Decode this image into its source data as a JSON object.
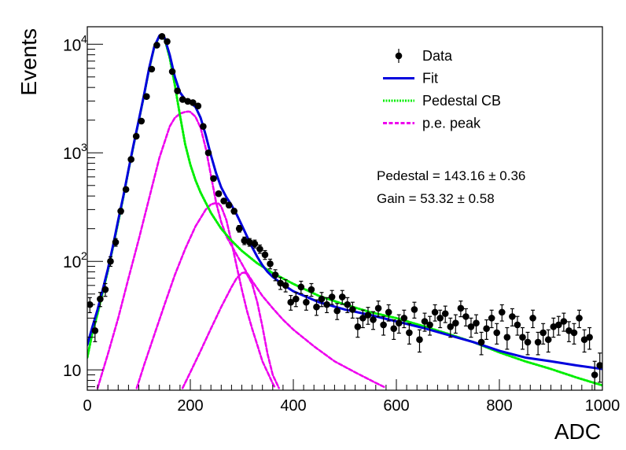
{
  "chart_data": {
    "type": "scatter",
    "xlabel": "ADC",
    "ylabel": "Events",
    "xlim": [
      0,
      1000
    ],
    "ylim": [
      6.5,
      14500
    ],
    "y_scale": "log",
    "x_ticks": [
      0,
      200,
      400,
      600,
      800,
      1000
    ],
    "x_tick_labels": [
      "0",
      "200",
      "400",
      "600",
      "800",
      "1000"
    ],
    "y_major_ticks": [
      10,
      100,
      1000,
      10000
    ],
    "y_tick_labels": [
      {
        "base": "10",
        "exp": ""
      },
      {
        "base": "10",
        "exp": "2"
      },
      {
        "base": "10",
        "exp": "3"
      },
      {
        "base": "10",
        "exp": "4"
      }
    ],
    "grid": false,
    "legend_position": "top-right",
    "legend": [
      {
        "key": "data",
        "label": "Data",
        "style": "marker",
        "color": "#000000"
      },
      {
        "key": "fit",
        "label": "Fit",
        "style": "solid",
        "color": "#0000dd"
      },
      {
        "key": "pedestal",
        "label": "Pedestal CB",
        "style": "dotted",
        "color": "#00ee00"
      },
      {
        "key": "pe",
        "label": "p.e. peak",
        "style": "dashed",
        "color": "#ee00ee"
      }
    ],
    "annotations": [
      {
        "text": "Pedestal = 143.16 ± 0.36"
      },
      {
        "text": "Gain = 53.32 ± 0.58"
      }
    ],
    "series": [
      {
        "name": "Data",
        "kind": "points_with_errors",
        "x": [
          5,
          15,
          25,
          35,
          45,
          55,
          65,
          75,
          85,
          95,
          105,
          115,
          125,
          135,
          145,
          155,
          165,
          175,
          185,
          195,
          205,
          215,
          225,
          235,
          245,
          255,
          265,
          275,
          285,
          295,
          305,
          315,
          325,
          335,
          345,
          355,
          365,
          375,
          385,
          395,
          405,
          415,
          425,
          435,
          445,
          455,
          465,
          475,
          485,
          495,
          505,
          515,
          525,
          535,
          545,
          555,
          565,
          575,
          585,
          595,
          605,
          615,
          625,
          635,
          645,
          655,
          665,
          675,
          685,
          695,
          705,
          715,
          725,
          735,
          745,
          755,
          765,
          775,
          785,
          795,
          805,
          815,
          825,
          835,
          845,
          855,
          865,
          875,
          885,
          895,
          905,
          915,
          925,
          935,
          945,
          955,
          965,
          975,
          985,
          995
        ],
        "y": [
          40,
          23,
          45,
          55,
          100,
          150,
          290,
          460,
          870,
          1420,
          1960,
          3300,
          5900,
          9800,
          11800,
          10600,
          5600,
          3720,
          3100,
          2980,
          2900,
          2700,
          1750,
          1000,
          580,
          420,
          360,
          330,
          290,
          200,
          155,
          150,
          145,
          130,
          115,
          95,
          75,
          63,
          60,
          42,
          45,
          58,
          42,
          55,
          38,
          45,
          40,
          47,
          35,
          47,
          40,
          36,
          25,
          30,
          32,
          29,
          37,
          26,
          34,
          24,
          27,
          30,
          22,
          36,
          19,
          28,
          26,
          34,
          30,
          33,
          25,
          27,
          37,
          31,
          25,
          27,
          18,
          24,
          30,
          22,
          34,
          20,
          31,
          26,
          20,
          18,
          30,
          18,
          22,
          19,
          25,
          26,
          28,
          23,
          22,
          30,
          19,
          20,
          9,
          11
        ],
        "yerr": [
          6.3,
          4.8,
          6.7,
          7.4,
          10,
          12.2,
          17,
          21.4,
          29.5,
          37.7,
          44.3,
          57.4,
          76.8,
          99,
          108.6,
          103,
          74.8,
          61,
          55.7,
          54.6,
          53.9,
          52,
          41.8,
          31.6,
          24.1,
          20.5,
          19,
          18.2,
          17,
          14.1,
          12.4,
          12.2,
          12,
          11.4,
          10.7,
          9.7,
          8.7,
          7.9,
          7.7,
          6.5,
          6.7,
          7.6,
          6.5,
          7.4,
          6.2,
          6.7,
          6.3,
          6.9,
          5.9,
          6.9,
          6.3,
          6,
          5,
          5.5,
          5.7,
          5.4,
          6.1,
          5.1,
          5.8,
          4.9,
          5.2,
          5.5,
          4.7,
          6,
          4.4,
          5.3,
          5.1,
          5.8,
          5.5,
          5.7,
          5,
          5.2,
          6.1,
          5.6,
          5,
          5.2,
          4.2,
          4.9,
          5.5,
          4.7,
          5.8,
          4.5,
          5.6,
          5.1,
          4.5,
          4.2,
          5.5,
          4.2,
          4.7,
          4.4,
          5,
          5.1,
          5.3,
          4.8,
          4.7,
          5.5,
          4.4,
          4.5,
          3,
          3.3
        ]
      },
      {
        "name": "Fit",
        "kind": "curve",
        "x": [
          0,
          10,
          20,
          30,
          40,
          50,
          60,
          70,
          80,
          90,
          100,
          110,
          120,
          130,
          140,
          145,
          150,
          160,
          170,
          180,
          190,
          200,
          210,
          220,
          230,
          240,
          250,
          260,
          270,
          280,
          290,
          300,
          310,
          320,
          330,
          340,
          350,
          360,
          380,
          400,
          450,
          500,
          550,
          600,
          650,
          700,
          750,
          800,
          850,
          900,
          950,
          1000
        ],
        "y": [
          17,
          25,
          36,
          55,
          85,
          140,
          240,
          400,
          700,
          1200,
          2000,
          3400,
          6000,
          9500,
          12000,
          12200,
          11500,
          8000,
          5000,
          3600,
          3100,
          2900,
          2650,
          2100,
          1450,
          950,
          650,
          480,
          390,
          330,
          270,
          215,
          170,
          135,
          110,
          92,
          80,
          72,
          61,
          53,
          42,
          36,
          32,
          28,
          24.5,
          21,
          18,
          15,
          13,
          12,
          11,
          10.2
        ]
      },
      {
        "name": "Pedestal CB",
        "kind": "curve",
        "x": [
          0,
          10,
          20,
          30,
          40,
          50,
          60,
          70,
          80,
          90,
          100,
          110,
          120,
          130,
          140,
          145,
          150,
          160,
          170,
          180,
          190,
          200,
          210,
          220,
          240,
          260,
          280,
          300,
          330,
          360,
          400,
          450,
          500,
          550,
          600,
          650,
          700,
          750,
          800,
          850,
          900,
          950,
          1000
        ],
        "y": [
          13,
          22,
          33,
          52,
          82,
          136,
          230,
          390,
          690,
          1180,
          1980,
          3350,
          5900,
          9400,
          11900,
          12100,
          11300,
          7500,
          4200,
          2200,
          1200,
          780,
          560,
          430,
          280,
          200,
          155,
          125,
          96,
          78,
          62,
          48,
          40,
          34,
          30,
          25.5,
          21.5,
          18,
          14.5,
          12,
          10.2,
          8.5,
          7.2
        ]
      },
      {
        "name": "p.e. peak 1",
        "kind": "curve",
        "x": [
          20,
          40,
          60,
          80,
          100,
          120,
          140,
          160,
          170,
          180,
          190,
          196,
          200,
          210,
          220,
          230,
          240,
          250,
          260,
          270,
          280,
          290,
          300,
          310,
          320,
          340,
          360,
          380,
          400,
          440,
          480,
          520,
          560,
          578
        ],
        "y": [
          6.8,
          14,
          30,
          70,
          160,
          380,
          900,
          1750,
          2100,
          2300,
          2380,
          2400,
          2380,
          2150,
          1700,
          1100,
          620,
          350,
          230,
          170,
          140,
          115,
          95,
          78,
          66,
          48,
          37,
          29,
          23.5,
          16.5,
          12,
          9.5,
          7.6,
          6.9
        ]
      },
      {
        "name": "p.e. peak 2",
        "kind": "curve",
        "x": [
          96,
          110,
          130,
          150,
          170,
          190,
          210,
          230,
          240,
          250,
          255,
          260,
          270,
          280,
          290,
          300,
          310,
          320,
          330,
          340,
          350,
          360,
          365
        ],
        "y": [
          6.8,
          11,
          21,
          40,
          75,
          130,
          210,
          300,
          335,
          345,
          340,
          320,
          240,
          150,
          90,
          55,
          35,
          24,
          17,
          12,
          9.5,
          7.5,
          6.8
        ]
      },
      {
        "name": "p.e. peak 3",
        "kind": "curve",
        "x": [
          185,
          200,
          220,
          240,
          260,
          280,
          290,
          300,
          305,
          310,
          320,
          330,
          340,
          350,
          360,
          372
        ],
        "y": [
          6.8,
          9.5,
          15,
          24,
          38,
          58,
          70,
          78,
          79,
          76,
          62,
          42,
          25,
          14,
          9,
          6.8
        ]
      }
    ]
  }
}
